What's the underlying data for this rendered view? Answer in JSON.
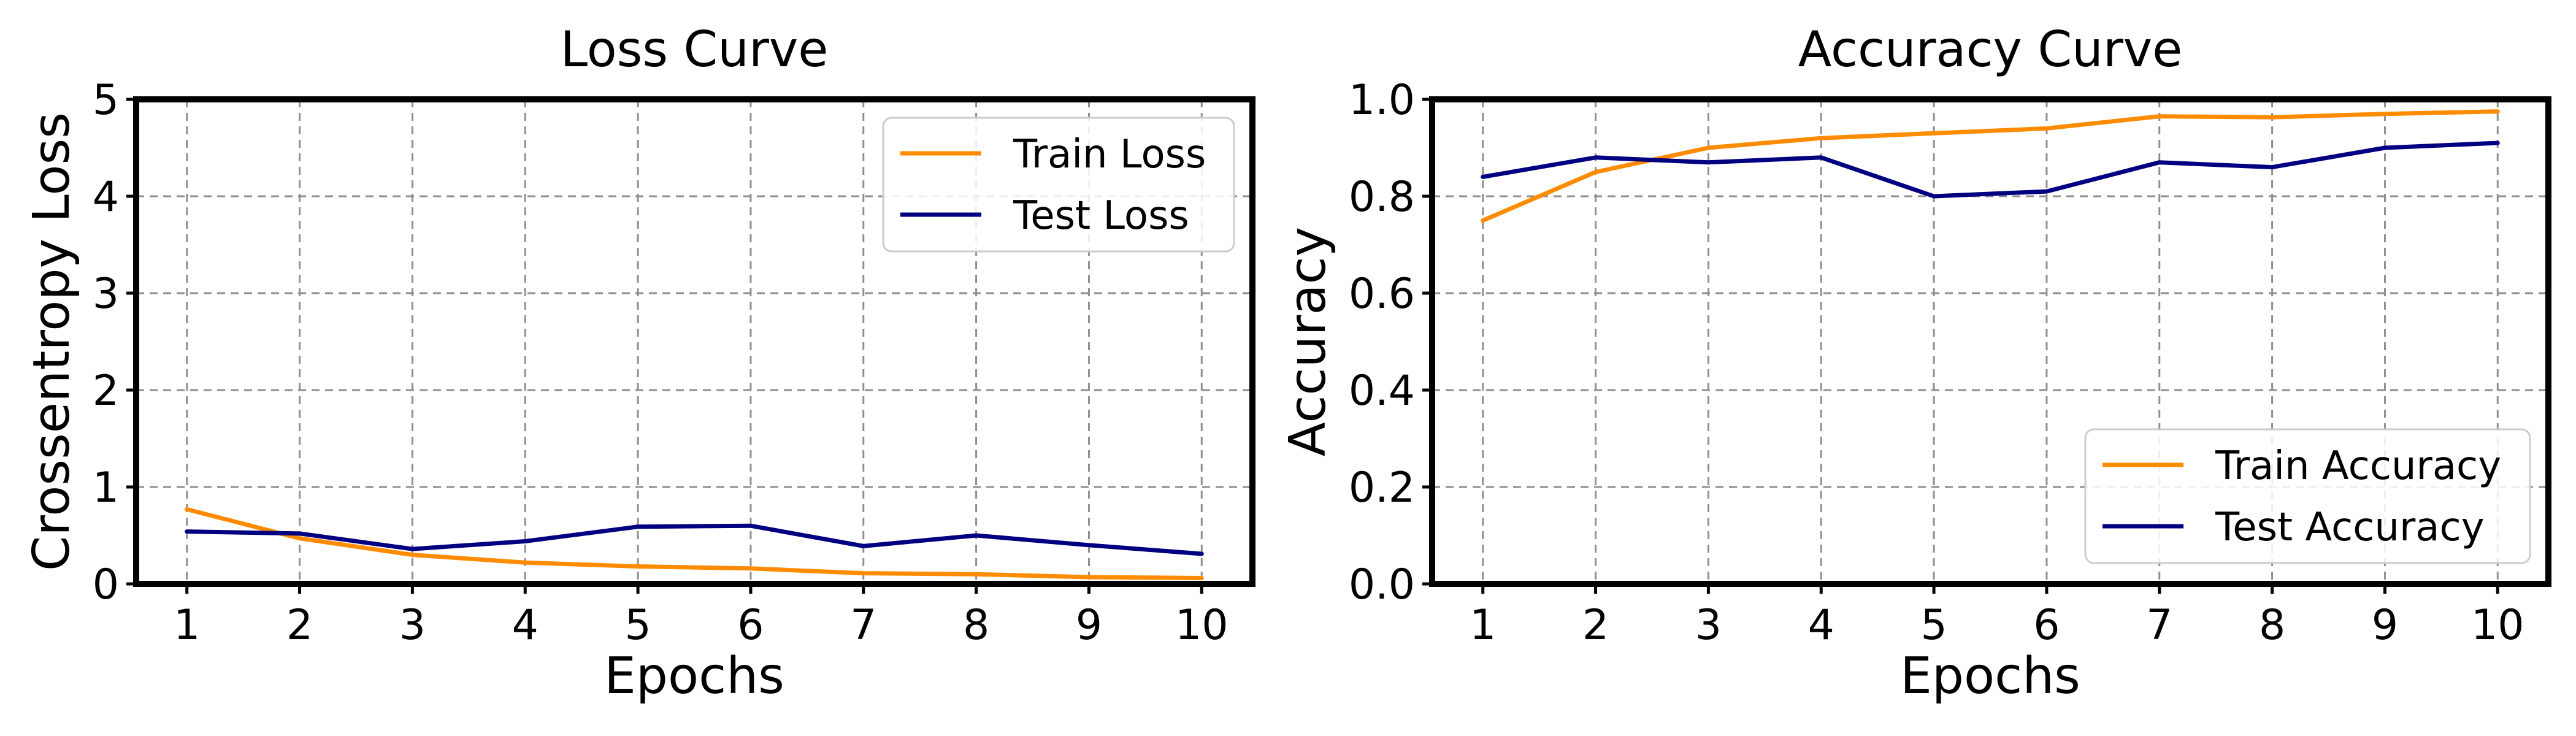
{
  "colors": {
    "train": "#ff8c00",
    "test": "#000080",
    "grid": "#8f8f8f"
  },
  "chart_data": [
    {
      "type": "line",
      "title": "Loss Curve",
      "xlabel": "Epochs",
      "ylabel": "Crossentropy Loss",
      "x": [
        1,
        2,
        3,
        4,
        5,
        6,
        7,
        8,
        9,
        10
      ],
      "x_ticks": [
        "1",
        "2",
        "3",
        "4",
        "5",
        "6",
        "7",
        "8",
        "9",
        "10"
      ],
      "xlim": [
        0.55,
        10.45
      ],
      "ylim": [
        0,
        5
      ],
      "y_ticks": [
        "0",
        "1",
        "2",
        "3",
        "4",
        "5"
      ],
      "grid": true,
      "legend_position": "top-right",
      "series": [
        {
          "name": "Train Loss",
          "color": "#ff8c00",
          "values": [
            0.77,
            0.47,
            0.3,
            0.22,
            0.18,
            0.16,
            0.11,
            0.1,
            0.07,
            0.06
          ]
        },
        {
          "name": "Test Loss",
          "color": "#000080",
          "values": [
            0.54,
            0.52,
            0.36,
            0.44,
            0.59,
            0.6,
            0.39,
            0.5,
            0.4,
            0.31
          ]
        }
      ]
    },
    {
      "type": "line",
      "title": "Accuracy Curve",
      "xlabel": "Epochs",
      "ylabel": "Accuracy",
      "x": [
        1,
        2,
        3,
        4,
        5,
        6,
        7,
        8,
        9,
        10
      ],
      "x_ticks": [
        "1",
        "2",
        "3",
        "4",
        "5",
        "6",
        "7",
        "8",
        "9",
        "10"
      ],
      "xlim": [
        0.55,
        10.45
      ],
      "ylim": [
        0,
        1
      ],
      "y_ticks": [
        "0.0",
        "0.2",
        "0.4",
        "0.6",
        "0.8",
        "1.0"
      ],
      "grid": true,
      "legend_position": "bottom-right",
      "series": [
        {
          "name": "Train Accuracy",
          "color": "#ff8c00",
          "values": [
            0.75,
            0.85,
            0.9,
            0.92,
            0.93,
            0.94,
            0.965,
            0.963,
            0.97,
            0.975
          ]
        },
        {
          "name": "Test Accuracy",
          "color": "#000080",
          "values": [
            0.84,
            0.88,
            0.87,
            0.88,
            0.8,
            0.81,
            0.87,
            0.86,
            0.9,
            0.91
          ]
        }
      ]
    }
  ]
}
